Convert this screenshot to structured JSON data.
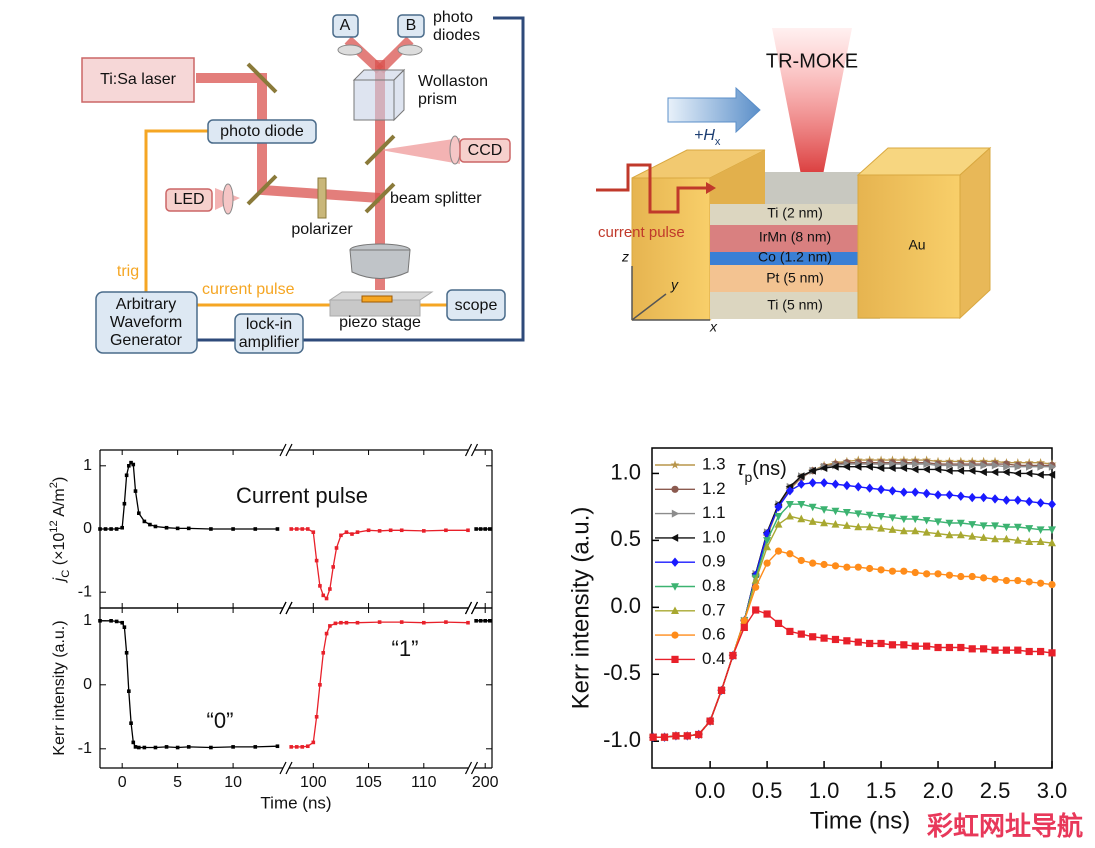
{
  "setup": {
    "laser": "Ti:Sa laser",
    "photo_diode": "photo diode",
    "led": "LED",
    "polarizer": "polarizer",
    "beam_splitter": "beam splitter",
    "wollaston": [
      "Wollaston",
      "prism"
    ],
    "detector_a": "A",
    "detector_b": "B",
    "photo_diodes": [
      "photo",
      "diodes"
    ],
    "ccd": "CCD",
    "trig": "trig",
    "current_pulse": "current pulse",
    "awg": [
      "Arbitrary",
      "Waveform",
      "Generator"
    ],
    "lock_in": [
      "lock-in",
      "amplifier"
    ],
    "piezo_stage": "piezo stage",
    "scope": "scope"
  },
  "device": {
    "title": "TR-MOKE",
    "field": [
      "+H",
      "x"
    ],
    "current_pulse": "current pulse",
    "layers": [
      "Ti (2 nm)",
      "IrMn (8 nm)",
      "Co (1.2 nm)",
      "Pt (5 nm)",
      "Ti (5 nm)"
    ],
    "electrode": "Au",
    "axes": [
      "z",
      "y",
      "x"
    ]
  },
  "watermark": "彩虹网址导航",
  "chart_data": [
    {
      "type": "line",
      "xlabel": "Time (ns)",
      "x_segments": [
        {
          "xlim": [
            -2,
            14.5
          ],
          "xticks": [
            0,
            5,
            10
          ]
        },
        {
          "xlim": [
            97.8,
            114
          ],
          "xticks": [
            100,
            105,
            110
          ]
        },
        {
          "xlim": [
            199.1,
            200.6
          ],
          "xticks": [
            200
          ]
        }
      ],
      "panels": [
        {
          "ylabel": [
            "j",
            "C",
            " (×10",
            "12",
            " A/m",
            "2",
            ")"
          ],
          "ylim": [
            -1.25,
            1.25
          ],
          "yticks": [
            -1,
            0,
            1
          ],
          "annotations": [
            "Current pulse"
          ],
          "series": [
            {
              "color": "#000000",
              "x": [
                -2,
                -1.5,
                -1,
                -0.5,
                0,
                0.2,
                0.4,
                0.6,
                0.8,
                1,
                1.2,
                1.5,
                2,
                2.5,
                3,
                4,
                5,
                6,
                8,
                10,
                12,
                14
              ],
              "values": [
                0,
                0,
                0,
                0,
                0.02,
                0.4,
                0.85,
                1,
                1.05,
                1.02,
                0.6,
                0.25,
                0.12,
                0.07,
                0.04,
                0.02,
                0.01,
                0.01,
                0,
                0,
                0,
                0
              ]
            },
            {
              "color": "#e8202a",
              "x": [
                98,
                98.5,
                99,
                99.5,
                100,
                100.3,
                100.6,
                100.9,
                101.2,
                101.5,
                101.8,
                102.1,
                102.5,
                103,
                103.5,
                104,
                105,
                106,
                107,
                108,
                110,
                112,
                114
              ],
              "values": [
                0,
                0,
                0,
                0,
                -0.05,
                -0.5,
                -0.9,
                -1.05,
                -1.1,
                -0.95,
                -0.6,
                -0.3,
                -0.1,
                -0.05,
                -0.08,
                -0.05,
                -0.02,
                -0.03,
                -0.02,
                -0.02,
                -0.03,
                -0.02,
                -0.02
              ]
            },
            {
              "color": "#000000",
              "x": [
                199.2,
                199.6,
                200,
                200.4
              ],
              "values": [
                0,
                0,
                0,
                0
              ]
            }
          ]
        },
        {
          "ylabel": "Kerr intensity (a.u.)",
          "ylim": [
            -1.3,
            1.2
          ],
          "yticks": [
            -1,
            0,
            1
          ],
          "annotations": [
            "“0”",
            "“1”"
          ],
          "series": [
            {
              "color": "#000000",
              "x": [
                -2,
                -1,
                -0.5,
                0,
                0.2,
                0.4,
                0.6,
                0.8,
                1,
                1.2,
                1.5,
                2,
                3,
                4,
                5,
                6,
                8,
                10,
                12,
                14
              ],
              "values": [
                1,
                1,
                0.99,
                0.97,
                0.9,
                0.5,
                -0.1,
                -0.6,
                -0.9,
                -0.97,
                -0.98,
                -0.98,
                -0.98,
                -0.97,
                -0.98,
                -0.97,
                -0.98,
                -0.97,
                -0.97,
                -0.96
              ]
            },
            {
              "color": "#e8202a",
              "x": [
                98,
                98.5,
                99,
                99.5,
                100,
                100.3,
                100.6,
                100.9,
                101.2,
                101.5,
                102,
                102.5,
                103,
                104,
                106,
                108,
                110,
                112,
                114
              ],
              "values": [
                -0.97,
                -0.97,
                -0.97,
                -0.96,
                -0.9,
                -0.5,
                0,
                0.5,
                0.8,
                0.92,
                0.96,
                0.97,
                0.97,
                0.97,
                0.98,
                0.98,
                0.97,
                0.98,
                0.97
              ]
            },
            {
              "color": "#000000",
              "x": [
                199.2,
                199.6,
                200,
                200.4
              ],
              "values": [
                1,
                1,
                1,
                1
              ]
            }
          ]
        }
      ]
    },
    {
      "type": "line",
      "xlabel": "Time (ns)",
      "ylabel": "Kerr intensity (a.u.)",
      "legend": "upper-left",
      "legend_title": [
        "τ",
        "p",
        "(ns)"
      ],
      "xlim": [
        -0.51,
        3.0
      ],
      "ylim": [
        -1.2,
        1.19
      ],
      "xticks": [
        {
          "value": 0,
          "label": "0.0"
        },
        0.5,
        {
          "value": 1,
          "label": "1.0"
        },
        1.5,
        {
          "value": 2,
          "label": "2.0"
        },
        2.5,
        {
          "value": 3,
          "label": "3.0"
        }
      ],
      "yticks": [
        {
          "value": -1,
          "label": "-1.0"
        },
        -0.5,
        {
          "value": 0,
          "label": "0.0"
        },
        0.5,
        {
          "value": 1,
          "label": "1.0"
        }
      ],
      "x": [
        -0.5,
        -0.4,
        -0.3,
        -0.2,
        -0.1,
        0,
        0.1,
        0.2,
        0.3,
        0.4,
        0.5,
        0.6,
        0.7,
        0.8,
        0.9,
        1.0,
        1.1,
        1.2,
        1.3,
        1.4,
        1.5,
        1.6,
        1.7,
        1.8,
        1.9,
        2.0,
        2.1,
        2.2,
        2.3,
        2.4,
        2.5,
        2.6,
        2.7,
        2.8,
        2.9,
        3.0
      ],
      "series": [
        {
          "name": "1.3",
          "color": "#b8954a",
          "marker": "star",
          "values": [
            -0.97,
            -0.97,
            -0.96,
            -0.96,
            -0.95,
            -0.85,
            -0.62,
            -0.36,
            -0.1,
            0.22,
            0.53,
            0.75,
            0.88,
            0.97,
            1.02,
            1.06,
            1.08,
            1.09,
            1.1,
            1.1,
            1.1,
            1.1,
            1.1,
            1.1,
            1.1,
            1.09,
            1.09,
            1.09,
            1.09,
            1.09,
            1.09,
            1.08,
            1.08,
            1.08,
            1.08,
            1.07
          ]
        },
        {
          "name": "1.2",
          "color": "#8b5a4f",
          "marker": "circle",
          "values": [
            -0.97,
            -0.97,
            -0.96,
            -0.96,
            -0.95,
            -0.85,
            -0.62,
            -0.36,
            -0.1,
            0.24,
            0.55,
            0.76,
            0.89,
            0.97,
            1.02,
            1.05,
            1.07,
            1.08,
            1.08,
            1.08,
            1.08,
            1.08,
            1.08,
            1.08,
            1.08,
            1.07,
            1.07,
            1.07,
            1.07,
            1.07,
            1.07,
            1.07,
            1.06,
            1.06,
            1.06,
            1.06
          ]
        },
        {
          "name": "1.1",
          "color": "#8c8c8c",
          "marker": "tri-right",
          "values": [
            -0.97,
            -0.97,
            -0.96,
            -0.96,
            -0.95,
            -0.85,
            -0.62,
            -0.36,
            -0.1,
            0.25,
            0.56,
            0.77,
            0.9,
            0.98,
            1.02,
            1.05,
            1.06,
            1.07,
            1.07,
            1.07,
            1.07,
            1.07,
            1.07,
            1.07,
            1.07,
            1.06,
            1.06,
            1.06,
            1.06,
            1.06,
            1.06,
            1.05,
            1.05,
            1.05,
            1.05,
            1.05
          ]
        },
        {
          "name": "1.0",
          "color": "#111111",
          "marker": "tri-left",
          "values": [
            -0.97,
            -0.97,
            -0.96,
            -0.96,
            -0.95,
            -0.85,
            -0.62,
            -0.36,
            -0.1,
            0.25,
            0.56,
            0.77,
            0.9,
            0.98,
            1.02,
            1.04,
            1.05,
            1.05,
            1.05,
            1.05,
            1.04,
            1.04,
            1.04,
            1.03,
            1.03,
            1.03,
            1.02,
            1.02,
            1.02,
            1.01,
            1.01,
            1.01,
            1.0,
            1.0,
            0.99,
            0.99
          ]
        },
        {
          "name": "0.9",
          "color": "#1a1aff",
          "marker": "diamond",
          "values": [
            -0.97,
            -0.97,
            -0.96,
            -0.96,
            -0.95,
            -0.85,
            -0.62,
            -0.36,
            -0.1,
            0.24,
            0.55,
            0.75,
            0.87,
            0.92,
            0.93,
            0.93,
            0.92,
            0.91,
            0.9,
            0.89,
            0.88,
            0.87,
            0.86,
            0.86,
            0.85,
            0.84,
            0.84,
            0.83,
            0.82,
            0.82,
            0.81,
            0.8,
            0.8,
            0.79,
            0.78,
            0.77
          ]
        },
        {
          "name": "0.8",
          "color": "#3cb371",
          "marker": "tri-down",
          "values": [
            -0.97,
            -0.97,
            -0.96,
            -0.96,
            -0.95,
            -0.85,
            -0.62,
            -0.36,
            -0.1,
            0.22,
            0.5,
            0.68,
            0.77,
            0.77,
            0.75,
            0.73,
            0.72,
            0.71,
            0.7,
            0.69,
            0.68,
            0.67,
            0.66,
            0.66,
            0.65,
            0.64,
            0.63,
            0.63,
            0.62,
            0.61,
            0.61,
            0.6,
            0.6,
            0.59,
            0.58,
            0.58
          ]
        },
        {
          "name": "0.7",
          "color": "#a8a830",
          "marker": "tri-up",
          "values": [
            -0.97,
            -0.97,
            -0.96,
            -0.96,
            -0.95,
            -0.85,
            -0.62,
            -0.36,
            -0.1,
            0.2,
            0.45,
            0.62,
            0.68,
            0.66,
            0.64,
            0.63,
            0.62,
            0.61,
            0.6,
            0.6,
            0.59,
            0.58,
            0.57,
            0.57,
            0.56,
            0.55,
            0.54,
            0.54,
            0.53,
            0.52,
            0.51,
            0.51,
            0.5,
            0.49,
            0.49,
            0.48
          ]
        },
        {
          "name": "0.6",
          "color": "#ff8c1a",
          "marker": "circle",
          "values": [
            -0.97,
            -0.97,
            -0.96,
            -0.96,
            -0.95,
            -0.85,
            -0.62,
            -0.36,
            -0.1,
            0.15,
            0.33,
            0.42,
            0.4,
            0.35,
            0.33,
            0.32,
            0.31,
            0.3,
            0.3,
            0.29,
            0.28,
            0.27,
            0.27,
            0.26,
            0.25,
            0.25,
            0.24,
            0.23,
            0.23,
            0.22,
            0.21,
            0.2,
            0.2,
            0.19,
            0.18,
            0.17
          ]
        },
        {
          "name": "0.4",
          "color": "#e8202a",
          "marker": "square",
          "values": [
            -0.97,
            -0.97,
            -0.96,
            -0.96,
            -0.95,
            -0.85,
            -0.62,
            -0.36,
            -0.15,
            -0.02,
            -0.05,
            -0.12,
            -0.18,
            -0.2,
            -0.22,
            -0.23,
            -0.24,
            -0.25,
            -0.26,
            -0.27,
            -0.27,
            -0.28,
            -0.28,
            -0.29,
            -0.29,
            -0.3,
            -0.3,
            -0.3,
            -0.31,
            -0.31,
            -0.32,
            -0.32,
            -0.32,
            -0.33,
            -0.33,
            -0.34
          ]
        }
      ]
    }
  ]
}
